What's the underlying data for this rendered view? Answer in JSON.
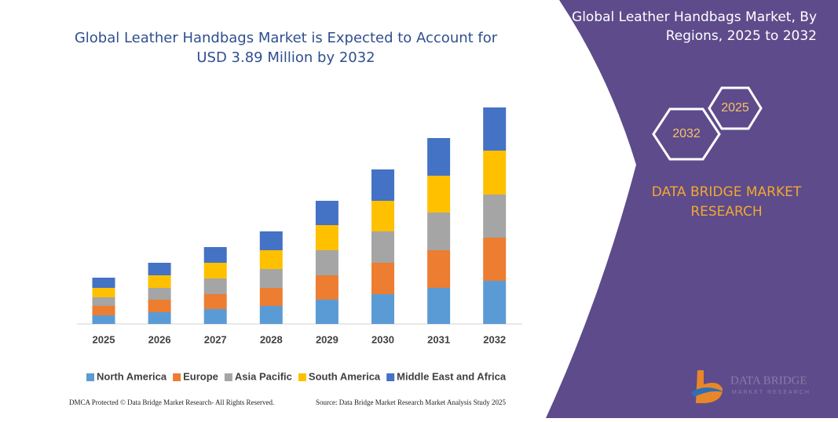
{
  "chart_data": {
    "type": "bar",
    "stacked": true,
    "title": [
      "Global Leather Handbags Market is Expected to Account for",
      "USD 3.89 Million by 2032"
    ],
    "categories": [
      "2025",
      "2026",
      "2027",
      "2028",
      "2029",
      "2030",
      "2031",
      "2032"
    ],
    "series": [
      {
        "name": "North America",
        "color": "#5b9bd5",
        "values": [
          11,
          15,
          19,
          23,
          31,
          38,
          46,
          55
        ]
      },
      {
        "name": "Europe",
        "color": "#ed7d31",
        "values": [
          12,
          16,
          19,
          23,
          31,
          40,
          48,
          55
        ]
      },
      {
        "name": "Asia Pacific",
        "color": "#a5a5a5",
        "values": [
          11,
          15,
          20,
          24,
          32,
          40,
          48,
          55
        ]
      },
      {
        "name": "South America",
        "color": "#ffc000",
        "values": [
          12,
          16,
          20,
          24,
          32,
          39,
          47,
          56
        ]
      },
      {
        "name": "Middle East and Africa",
        "color": "#4472c4",
        "values": [
          13,
          16,
          20,
          24,
          31,
          40,
          48,
          55
        ]
      }
    ]
  },
  "panel": {
    "title": [
      "Global Leather Handbags Market, By",
      "Regions, 2025 to 2032"
    ],
    "hexagons": [
      "2032",
      "2025"
    ],
    "brand": [
      "DATA BRIDGE MARKET",
      "RESEARCH"
    ]
  },
  "logo": {
    "name": "DATA BRIDGE",
    "tagline": "MARKET RESEARCH"
  },
  "footer": {
    "left": "DMCA Protected © Data Bridge Market Research- All Rights Reserved.",
    "right": "Source: Data Bridge Market Research Market Analysis Study 2025"
  }
}
